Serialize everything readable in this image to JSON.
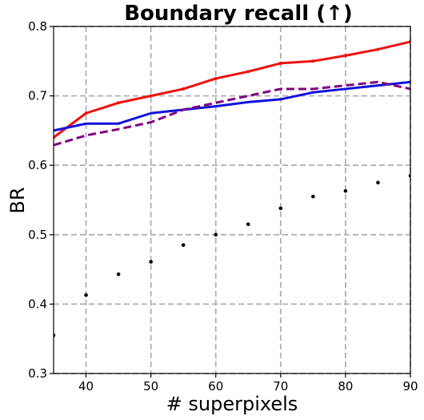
{
  "chart_data": {
    "type": "line",
    "title": "Boundary recall (↑)",
    "xlabel": "# superpixels",
    "ylabel": "BR",
    "xlim": [
      35,
      90
    ],
    "ylim": [
      0.3,
      0.8
    ],
    "xticks": [
      40,
      50,
      60,
      70,
      80,
      90
    ],
    "xtick_labels": [
      "40",
      "50",
      "60",
      "70",
      "80",
      "90"
    ],
    "yticks": [
      0.3,
      0.4,
      0.5,
      0.6,
      0.7,
      0.8
    ],
    "ytick_labels": [
      "0.3",
      "0.4",
      "0.5",
      "0.6",
      "0.7",
      "0.8"
    ],
    "grid": true,
    "series": [
      {
        "style": "solid",
        "color": "#ee1111",
        "markers": true,
        "x": [
          35,
          40,
          45,
          50,
          55,
          60,
          65,
          70,
          75,
          80,
          85,
          90
        ],
        "y": [
          0.64,
          0.675,
          0.69,
          0.7,
          0.71,
          0.725,
          0.735,
          0.747,
          0.75,
          0.758,
          0.767,
          0.778
        ]
      },
      {
        "style": "solid",
        "color": "#1111dd",
        "markers": false,
        "x": [
          35,
          40,
          45,
          50,
          55,
          60,
          65,
          70,
          75,
          80,
          85,
          90
        ],
        "y": [
          0.65,
          0.66,
          0.66,
          0.675,
          0.68,
          0.685,
          0.691,
          0.695,
          0.705,
          0.71,
          0.715,
          0.72
        ]
      },
      {
        "style": "dashed",
        "color": "#800080",
        "markers": false,
        "x": [
          35,
          40,
          45,
          50,
          55,
          60,
          65,
          70,
          75,
          80,
          85,
          90
        ],
        "y": [
          0.629,
          0.643,
          0.652,
          0.662,
          0.68,
          0.69,
          0.7,
          0.71,
          0.71,
          0.715,
          0.72,
          0.71
        ]
      },
      {
        "style": "points",
        "color": "#000000",
        "markers": true,
        "x": [
          35,
          40,
          45,
          50,
          55,
          60,
          65,
          70,
          75,
          80,
          85,
          90
        ],
        "y": [
          0.355,
          0.413,
          0.443,
          0.461,
          0.485,
          0.5,
          0.515,
          0.538,
          0.555,
          0.563,
          0.575,
          0.585
        ]
      }
    ]
  }
}
